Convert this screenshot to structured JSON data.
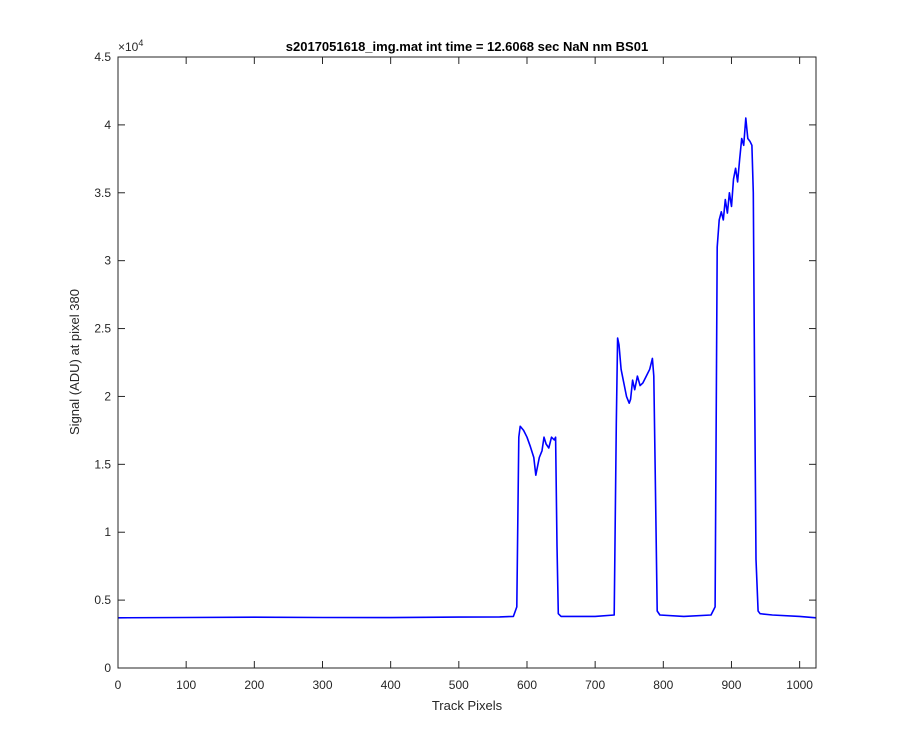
{
  "chart_data": {
    "type": "line",
    "title": "s2017051618_img.mat int time = 12.6068 sec  NaN nm BS01",
    "xlabel": "Track Pixels",
    "ylabel": "Signal (ADU) at pixel 380",
    "xlim": [
      0,
      1024
    ],
    "ylim": [
      0,
      45000
    ],
    "y_exponent_label": "×10",
    "y_exponent_power": "4",
    "x_ticks": [
      0,
      100,
      200,
      300,
      400,
      500,
      600,
      700,
      800,
      900,
      1000
    ],
    "x_tick_labels": [
      "0",
      "100",
      "200",
      "300",
      "400",
      "500",
      "600",
      "700",
      "800",
      "900",
      "1000"
    ],
    "y_ticks": [
      0,
      5000,
      10000,
      15000,
      20000,
      25000,
      30000,
      35000,
      40000,
      45000
    ],
    "y_tick_labels": [
      "0",
      "0.5",
      "1",
      "1.5",
      "2",
      "2.5",
      "3",
      "3.5",
      "4",
      "4.5"
    ],
    "grid": false,
    "line_color": "#0000ff",
    "series": [
      {
        "x": [
          0,
          100,
          200,
          300,
          400,
          500,
          560,
          580,
          585,
          588,
          590,
          595,
          600,
          605,
          610,
          613,
          618,
          622,
          625,
          628,
          632,
          636,
          640,
          642,
          644,
          646,
          650,
          700,
          728,
          731,
          733,
          735,
          738,
          742,
          746,
          750,
          752,
          755,
          758,
          762,
          766,
          770,
          775,
          780,
          784,
          786,
          788,
          791,
          795,
          830,
          870,
          876,
          879,
          882,
          885,
          888,
          891,
          894,
          897,
          900,
          903,
          906,
          909,
          912,
          915,
          918,
          921,
          924,
          927,
          930,
          932,
          934,
          936,
          939,
          942,
          960,
          1000,
          1024
        ],
        "y": [
          3700,
          3720,
          3740,
          3720,
          3710,
          3750,
          3760,
          3800,
          4500,
          17000,
          17800,
          17500,
          17000,
          16300,
          15500,
          14200,
          15500,
          16000,
          17000,
          16500,
          16200,
          17000,
          16800,
          17000,
          9000,
          4000,
          3800,
          3800,
          3900,
          18000,
          24300,
          23800,
          22000,
          21000,
          20000,
          19500,
          19800,
          21200,
          20500,
          21500,
          20800,
          21000,
          21500,
          22000,
          22800,
          21500,
          15000,
          4200,
          3900,
          3800,
          3900,
          4500,
          31000,
          33000,
          33600,
          33000,
          34500,
          33500,
          35000,
          34000,
          36000,
          36800,
          35800,
          37500,
          39000,
          38500,
          40500,
          39000,
          38800,
          38500,
          35000,
          20000,
          8000,
          4200,
          4000,
          3900,
          3800,
          3700
        ]
      }
    ]
  }
}
